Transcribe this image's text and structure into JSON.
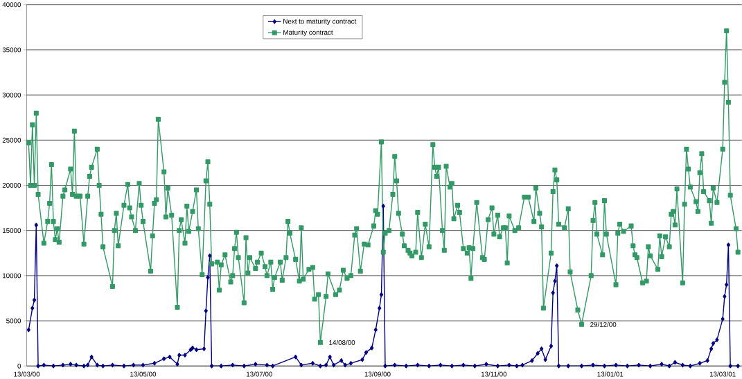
{
  "chart_data": {
    "type": "line",
    "xlim": [
      "2000-03-13",
      "2001-03-23"
    ],
    "ylim": [
      0,
      40000
    ],
    "xticks": [
      {
        "value": "2000-03-13",
        "label": "13/03/00"
      },
      {
        "value": "2000-05-13",
        "label": "13/05/00"
      },
      {
        "value": "2000-07-13",
        "label": "13/07/00"
      },
      {
        "value": "2000-09-13",
        "label": "13/09/00"
      },
      {
        "value": "2000-11-13",
        "label": "13/11/00"
      },
      {
        "value": "2001-01-13",
        "label": "13/01/01"
      },
      {
        "value": "2001-03-13",
        "label": "13/03/01"
      }
    ],
    "yticks": [
      0,
      5000,
      10000,
      15000,
      20000,
      25000,
      30000,
      35000,
      40000
    ],
    "grid": "y",
    "legend": "top",
    "line_style": "solid",
    "annotations": [
      {
        "text": "14/08/00",
        "x": "2000-08-14",
        "y": 2600
      },
      {
        "text": "29/12/00",
        "x": "2000-12-29",
        "y": 4600
      }
    ],
    "series": [
      {
        "name": "Next to maturity contract",
        "color": "#000080",
        "marker": "diamond",
        "x": [
          "2000-03-14",
          "2000-03-16",
          "2000-03-17",
          "2000-03-18",
          "2000-03-19",
          "2000-03-22",
          "2000-03-27",
          "2000-04-01",
          "2000-04-05",
          "2000-04-08",
          "2000-04-12",
          "2000-04-14",
          "2000-04-16",
          "2000-04-19",
          "2000-04-22",
          "2000-04-27",
          "2000-05-03",
          "2000-05-08",
          "2000-05-13",
          "2000-05-19",
          "2000-05-24",
          "2000-05-27",
          "2000-05-31",
          "2000-06-01",
          "2000-06-04",
          "2000-06-07",
          "2000-06-08",
          "2000-06-10",
          "2000-06-14",
          "2000-06-15",
          "2000-06-16",
          "2000-06-17",
          "2000-06-18",
          "2000-06-23",
          "2000-06-29",
          "2000-07-05",
          "2000-07-11",
          "2000-07-17",
          "2000-07-20",
          "2000-08-01",
          "2000-08-04",
          "2000-08-10",
          "2000-08-14",
          "2000-08-17",
          "2000-08-19",
          "2000-08-21",
          "2000-08-25",
          "2000-08-27",
          "2000-08-30",
          "2000-09-05",
          "2000-09-07",
          "2000-09-10",
          "2000-09-12",
          "2000-09-14",
          "2000-09-15",
          "2000-09-16",
          "2000-09-17",
          "2000-09-22",
          "2000-09-28",
          "2000-10-04",
          "2000-10-10",
          "2000-10-16",
          "2000-10-22",
          "2000-10-28",
          "2000-11-03",
          "2000-11-09",
          "2000-11-15",
          "2000-11-21",
          "2000-11-25",
          "2000-11-28",
          "2000-12-03",
          "2000-12-06",
          "2000-12-08",
          "2000-12-10",
          "2000-12-13",
          "2000-12-14",
          "2000-12-15",
          "2000-12-16",
          "2000-12-17",
          "2000-12-22",
          "2000-12-29",
          "2001-01-04",
          "2001-01-10",
          "2001-01-16",
          "2001-01-22",
          "2001-01-28",
          "2001-02-03",
          "2001-02-09",
          "2001-02-13",
          "2001-02-16",
          "2001-02-20",
          "2001-02-24",
          "2001-03-01",
          "2001-03-05",
          "2001-03-07",
          "2001-03-08",
          "2001-03-10",
          "2001-03-13",
          "2001-03-14",
          "2001-03-15",
          "2001-03-16",
          "2001-03-17",
          "2001-03-21"
        ],
        "values": [
          4000,
          6400,
          7300,
          15600,
          0,
          100,
          0,
          100,
          200,
          100,
          0,
          100,
          1000,
          100,
          0,
          100,
          0,
          100,
          100,
          300,
          800,
          1000,
          200,
          1200,
          1200,
          1800,
          2000,
          1800,
          1900,
          6100,
          9800,
          12200,
          0,
          0,
          100,
          0,
          200,
          100,
          0,
          1000,
          100,
          300,
          0,
          100,
          1000,
          100,
          600,
          100,
          300,
          700,
          1500,
          2000,
          4000,
          6400,
          7900,
          17700,
          0,
          100,
          0,
          100,
          0,
          100,
          0,
          100,
          0,
          200,
          0,
          100,
          0,
          100,
          600,
          1400,
          1900,
          700,
          2200,
          8100,
          9400,
          11100,
          0,
          0,
          0,
          100,
          0,
          100,
          0,
          100,
          0,
          200,
          0,
          400,
          100,
          0,
          300,
          600,
          1900,
          2500,
          2900,
          5200,
          7700,
          9000,
          13400,
          0,
          0
        ]
      },
      {
        "name": "Maturity contract",
        "color": "#339966",
        "marker": "square",
        "x": [
          "2000-03-14",
          "2000-03-15",
          "2000-03-16",
          "2000-03-17",
          "2000-03-18",
          "2000-03-19",
          "2000-03-22",
          "2000-03-24",
          "2000-03-25",
          "2000-03-26",
          "2000-03-27",
          "2000-03-28",
          "2000-03-29",
          "2000-03-30",
          "2000-04-01",
          "2000-04-02",
          "2000-04-05",
          "2000-04-06",
          "2000-04-07",
          "2000-04-08",
          "2000-04-10",
          "2000-04-12",
          "2000-04-14",
          "2000-04-15",
          "2000-04-16",
          "2000-04-19",
          "2000-04-20",
          "2000-04-21",
          "2000-04-22",
          "2000-04-27",
          "2000-04-28",
          "2000-04-29",
          "2000-04-30",
          "2000-05-03",
          "2000-05-05",
          "2000-05-06",
          "2000-05-07",
          "2000-05-09",
          "2000-05-11",
          "2000-05-12",
          "2000-05-13",
          "2000-05-17",
          "2000-05-18",
          "2000-05-19",
          "2000-05-20",
          "2000-05-21",
          "2000-05-24",
          "2000-05-25",
          "2000-05-26",
          "2000-05-28",
          "2000-05-31",
          "2000-06-01",
          "2000-06-02",
          "2000-06-04",
          "2000-06-05",
          "2000-06-06",
          "2000-06-08",
          "2000-06-10",
          "2000-06-11",
          "2000-06-13",
          "2000-06-15",
          "2000-06-16",
          "2000-06-17",
          "2000-06-18",
          "2000-06-21",
          "2000-06-22",
          "2000-06-23",
          "2000-06-25",
          "2000-06-28",
          "2000-06-29",
          "2000-06-30",
          "2000-07-01",
          "2000-07-02",
          "2000-07-05",
          "2000-07-06",
          "2000-07-07",
          "2000-07-08",
          "2000-07-11",
          "2000-07-12",
          "2000-07-14",
          "2000-07-16",
          "2000-07-17",
          "2000-07-19",
          "2000-07-20",
          "2000-07-21",
          "2000-07-24",
          "2000-07-25",
          "2000-07-27",
          "2000-07-28",
          "2000-07-29",
          "2000-08-01",
          "2000-08-03",
          "2000-08-04",
          "2000-08-05",
          "2000-08-08",
          "2000-08-10",
          "2000-08-11",
          "2000-08-13",
          "2000-08-14",
          "2000-08-17",
          "2000-08-18",
          "2000-08-22",
          "2000-08-24",
          "2000-08-26",
          "2000-08-28",
          "2000-08-30",
          "2000-09-01",
          "2000-09-02",
          "2000-09-04",
          "2000-09-06",
          "2000-09-08",
          "2000-09-11",
          "2000-09-12",
          "2000-09-13",
          "2000-09-15",
          "2000-09-16",
          "2000-09-17",
          "2000-09-19",
          "2000-09-21",
          "2000-09-22",
          "2000-09-23",
          "2000-09-24",
          "2000-09-26",
          "2000-09-27",
          "2000-09-29",
          "2000-09-30",
          "2000-10-01",
          "2000-10-03",
          "2000-10-04",
          "2000-10-06",
          "2000-10-08",
          "2000-10-10",
          "2000-10-12",
          "2000-10-13",
          "2000-10-14",
          "2000-10-15",
          "2000-10-17",
          "2000-10-18",
          "2000-10-19",
          "2000-10-21",
          "2000-10-22",
          "2000-10-23",
          "2000-10-25",
          "2000-10-26",
          "2000-10-28",
          "2000-10-30",
          "2000-10-31",
          "2000-11-01",
          "2000-11-02",
          "2000-11-04",
          "2000-11-07",
          "2000-11-08",
          "2000-11-10",
          "2000-11-12",
          "2000-11-13",
          "2000-11-15",
          "2000-11-16",
          "2000-11-18",
          "2000-11-19",
          "2000-11-20",
          "2000-11-21",
          "2000-11-24",
          "2000-11-26",
          "2000-11-29",
          "2000-12-01",
          "2000-12-04",
          "2000-12-05",
          "2000-12-07",
          "2000-12-08",
          "2000-12-09",
          "2000-12-13",
          "2000-12-14",
          "2000-12-15",
          "2000-12-16",
          "2000-12-17",
          "2000-12-20",
          "2000-12-22",
          "2000-12-23",
          "2000-12-27",
          "2000-12-29",
          "2001-01-03",
          "2001-01-04",
          "2001-01-05",
          "2001-01-06",
          "2001-01-09",
          "2001-01-10",
          "2001-01-11",
          "2001-01-16",
          "2001-01-17",
          "2001-01-18",
          "2001-01-20",
          "2001-01-24",
          "2001-01-25",
          "2001-01-26",
          "2001-01-27",
          "2001-01-30",
          "2001-02-01",
          "2001-02-02",
          "2001-02-03",
          "2001-02-07",
          "2001-02-08",
          "2001-02-09",
          "2001-02-11",
          "2001-02-13",
          "2001-02-14",
          "2001-02-15",
          "2001-02-16",
          "2001-02-17",
          "2001-02-20",
          "2001-02-21",
          "2001-02-22",
          "2001-02-23",
          "2001-02-24",
          "2001-02-27",
          "2001-02-28",
          "2001-03-01",
          "2001-03-02",
          "2001-03-03",
          "2001-03-06",
          "2001-03-07",
          "2001-03-08",
          "2001-03-10",
          "2001-03-13",
          "2001-03-14",
          "2001-03-15",
          "2001-03-16",
          "2001-03-17",
          "2001-03-20",
          "2001-03-21"
        ],
        "values": [
          24700,
          20000,
          26700,
          20000,
          28000,
          19000,
          13600,
          16000,
          18000,
          22300,
          16000,
          14000,
          15200,
          13700,
          18800,
          19500,
          21800,
          19000,
          26000,
          18800,
          18800,
          13500,
          18800,
          21000,
          22000,
          24000,
          20000,
          16800,
          13200,
          8800,
          15000,
          16900,
          13300,
          17800,
          20100,
          17500,
          16500,
          15000,
          20200,
          17800,
          16000,
          10500,
          14400,
          18000,
          18400,
          27300,
          21500,
          16500,
          19700,
          16700,
          6500,
          15000,
          16200,
          13600,
          17700,
          14900,
          17100,
          19500,
          15200,
          10100,
          20500,
          22600,
          17900,
          11300,
          11500,
          8400,
          11200,
          12300,
          9300,
          10000,
          13000,
          14800,
          12000,
          7000,
          14200,
          10300,
          12000,
          10800,
          11500,
          12500,
          11000,
          10000,
          11500,
          8500,
          9800,
          11500,
          9500,
          12000,
          16000,
          14700,
          11800,
          9400,
          15300,
          9600,
          10700,
          10900,
          7400,
          7900,
          2600,
          7700,
          10200,
          7900,
          8400,
          10600,
          9700,
          10000,
          14500,
          15200,
          10500,
          13500,
          13400,
          15500,
          17200,
          16800,
          24800,
          12600,
          14700,
          15000,
          19000,
          23200,
          20500,
          16900,
          14600,
          13300,
          12800,
          12500,
          12200,
          12600,
          17000,
          12000,
          15700,
          13200,
          24500,
          22000,
          21000,
          22000,
          15000,
          12800,
          22100,
          19800,
          20200,
          16300,
          17800,
          17000,
          13000,
          12500,
          13100,
          9700,
          13000,
          18100,
          12000,
          11800,
          16200,
          17500,
          14600,
          16700,
          14300,
          15300,
          15300,
          11400,
          16600,
          15000,
          15300,
          18700,
          18700,
          16000,
          19700,
          16900,
          15400,
          6400,
          12500,
          19300,
          21700,
          20600,
          15700,
          15300,
          17400,
          10400,
          6200,
          4600,
          10000,
          16100,
          18100,
          14600,
          12300,
          18300,
          14600,
          9000,
          14700,
          15700,
          14900,
          15500,
          13300,
          12300,
          12000,
          9200,
          9400,
          13200,
          12200,
          10700,
          14400,
          12100,
          14300,
          13200,
          16800,
          17100,
          15600,
          19600,
          9200,
          17900,
          24000,
          21800,
          19800,
          18200,
          17100,
          21400,
          23500,
          19300,
          18300,
          15800,
          19700,
          18100,
          24000,
          31400,
          37100,
          29200,
          18900,
          15200,
          12600
        ]
      }
    ]
  }
}
